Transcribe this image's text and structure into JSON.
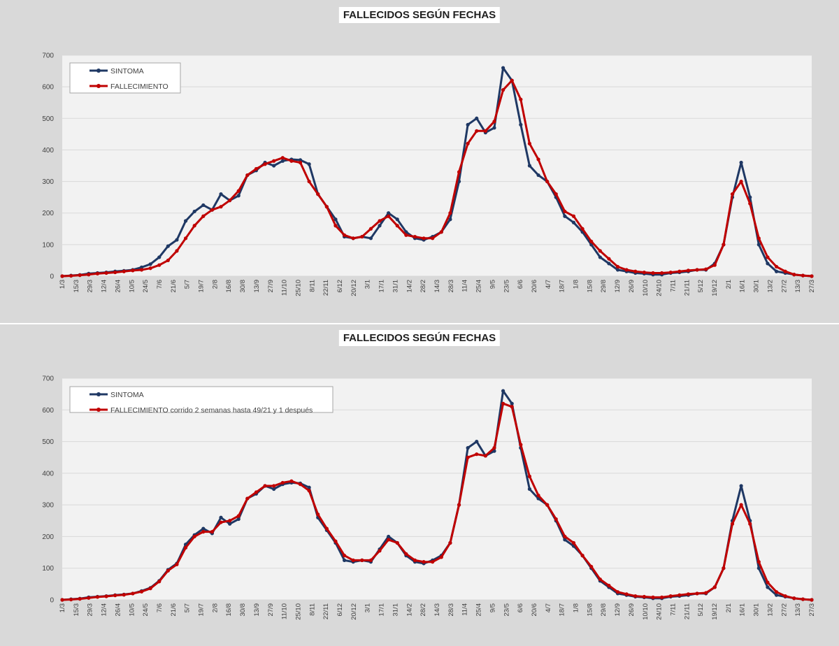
{
  "chart_data": [
    {
      "type": "line",
      "title": "FALLECIDOS SEGÚN FECHAS",
      "ylim": [
        0,
        700
      ],
      "yticks": [
        0,
        100,
        200,
        300,
        400,
        500,
        600,
        700
      ],
      "xtick_labels": [
        "1/3",
        "15/3",
        "29/3",
        "12/4",
        "26/4",
        "10/5",
        "24/5",
        "7/6",
        "21/6",
        "5/7",
        "19/7",
        "2/8",
        "16/8",
        "30/8",
        "13/9",
        "27/9",
        "11/10",
        "25/10",
        "8/11",
        "22/11",
        "6/12",
        "20/12",
        "3/1",
        "17/1",
        "31/1",
        "14/2",
        "28/2",
        "14/3",
        "28/3",
        "11/4",
        "25/4",
        "9/5",
        "23/5",
        "6/6",
        "20/6",
        "4/7",
        "18/7",
        "1/8",
        "15/8",
        "29/8",
        "12/9",
        "26/9",
        "10/10",
        "24/10",
        "7/11",
        "21/11",
        "5/12",
        "19/12",
        "2/1",
        "16/1",
        "30/1",
        "13/2",
        "27/2",
        "13/3",
        "27/3"
      ],
      "grid": true,
      "legend_position": "top-left",
      "series": [
        {
          "name": "SINTOMA",
          "color": "#1f3864",
          "values": [
            0,
            2,
            4,
            8,
            10,
            12,
            15,
            17,
            20,
            28,
            38,
            60,
            95,
            115,
            175,
            205,
            225,
            210,
            260,
            240,
            255,
            320,
            335,
            360,
            350,
            365,
            370,
            368,
            355,
            260,
            220,
            180,
            125,
            120,
            125,
            120,
            160,
            200,
            180,
            140,
            120,
            115,
            125,
            140,
            180,
            300,
            480,
            500,
            455,
            470,
            660,
            620,
            480,
            350,
            320,
            300,
            250,
            190,
            170,
            140,
            100,
            60,
            40,
            20,
            15,
            10,
            8,
            5,
            5,
            10,
            12,
            15,
            20,
            20,
            40,
            100,
            250,
            360,
            250,
            100,
            40,
            15,
            10,
            5,
            2,
            0
          ],
          "legend_label": "SINTOMA"
        },
        {
          "name": "FALLECIMIENTO",
          "color": "#c00000",
          "values": [
            0,
            1,
            3,
            5,
            8,
            10,
            12,
            15,
            18,
            20,
            25,
            35,
            50,
            80,
            120,
            160,
            190,
            210,
            220,
            240,
            270,
            320,
            340,
            355,
            365,
            375,
            365,
            360,
            300,
            260,
            220,
            160,
            130,
            120,
            125,
            150,
            175,
            190,
            160,
            130,
            125,
            120,
            120,
            140,
            200,
            330,
            420,
            460,
            460,
            490,
            590,
            620,
            560,
            420,
            370,
            300,
            260,
            205,
            190,
            150,
            110,
            80,
            55,
            30,
            20,
            15,
            12,
            10,
            10,
            12,
            15,
            18,
            20,
            22,
            35,
            100,
            260,
            300,
            230,
            120,
            60,
            30,
            15,
            5,
            2,
            0
          ],
          "legend_label": "FALLECIMIENTO"
        }
      ]
    },
    {
      "type": "line",
      "title": "FALLECIDOS SEGÚN FECHAS",
      "ylim": [
        0,
        700
      ],
      "yticks": [
        0,
        100,
        200,
        300,
        400,
        500,
        600,
        700
      ],
      "xtick_labels": [
        "1/3",
        "15/3",
        "29/3",
        "12/4",
        "26/4",
        "10/5",
        "24/5",
        "7/6",
        "21/6",
        "5/7",
        "19/7",
        "2/8",
        "16/8",
        "30/8",
        "13/9",
        "27/9",
        "11/10",
        "25/10",
        "8/11",
        "22/11",
        "6/12",
        "20/12",
        "3/1",
        "17/1",
        "31/1",
        "14/2",
        "28/2",
        "14/3",
        "28/3",
        "11/4",
        "25/4",
        "9/5",
        "23/5",
        "6/6",
        "20/6",
        "4/7",
        "18/7",
        "1/8",
        "15/8",
        "29/8",
        "12/9",
        "26/9",
        "10/10",
        "24/10",
        "7/11",
        "21/11",
        "5/12",
        "19/12",
        "2/1",
        "16/1",
        "30/1",
        "13/2",
        "27/2",
        "13/3",
        "27/3"
      ],
      "grid": true,
      "legend_position": "top-left",
      "series": [
        {
          "name": "SINTOMA",
          "color": "#1f3864",
          "values": [
            0,
            2,
            4,
            8,
            10,
            12,
            15,
            17,
            20,
            28,
            38,
            60,
            95,
            115,
            175,
            205,
            225,
            210,
            260,
            240,
            255,
            320,
            335,
            360,
            350,
            365,
            370,
            368,
            355,
            260,
            220,
            180,
            125,
            120,
            125,
            120,
            160,
            200,
            180,
            140,
            120,
            115,
            125,
            140,
            180,
            300,
            480,
            500,
            455,
            470,
            660,
            620,
            480,
            350,
            320,
            300,
            250,
            190,
            170,
            140,
            100,
            60,
            40,
            20,
            15,
            10,
            8,
            5,
            5,
            10,
            12,
            15,
            20,
            20,
            40,
            100,
            250,
            360,
            250,
            100,
            40,
            15,
            10,
            5,
            2,
            0
          ],
          "legend_label": "SINTOMA"
        },
        {
          "name": "FALLECIMIENTO corrido 2 semanas hasta 49/21 y 1 después",
          "color": "#c00000",
          "values": [
            0,
            1,
            3,
            6,
            9,
            11,
            14,
            16,
            20,
            26,
            36,
            58,
            92,
            112,
            165,
            200,
            215,
            215,
            245,
            250,
            265,
            320,
            340,
            360,
            360,
            370,
            375,
            365,
            345,
            270,
            225,
            185,
            140,
            125,
            125,
            125,
            155,
            190,
            180,
            145,
            125,
            120,
            120,
            135,
            180,
            300,
            450,
            460,
            455,
            480,
            620,
            610,
            490,
            390,
            330,
            300,
            255,
            200,
            180,
            140,
            105,
            65,
            45,
            25,
            18,
            12,
            10,
            8,
            8,
            12,
            15,
            18,
            20,
            22,
            40,
            100,
            240,
            300,
            240,
            120,
            55,
            25,
            12,
            5,
            2,
            0
          ],
          "legend_label": "FALLECIMIENTO corrido 2 semanas hasta 49/21 y 1 después"
        }
      ]
    }
  ]
}
